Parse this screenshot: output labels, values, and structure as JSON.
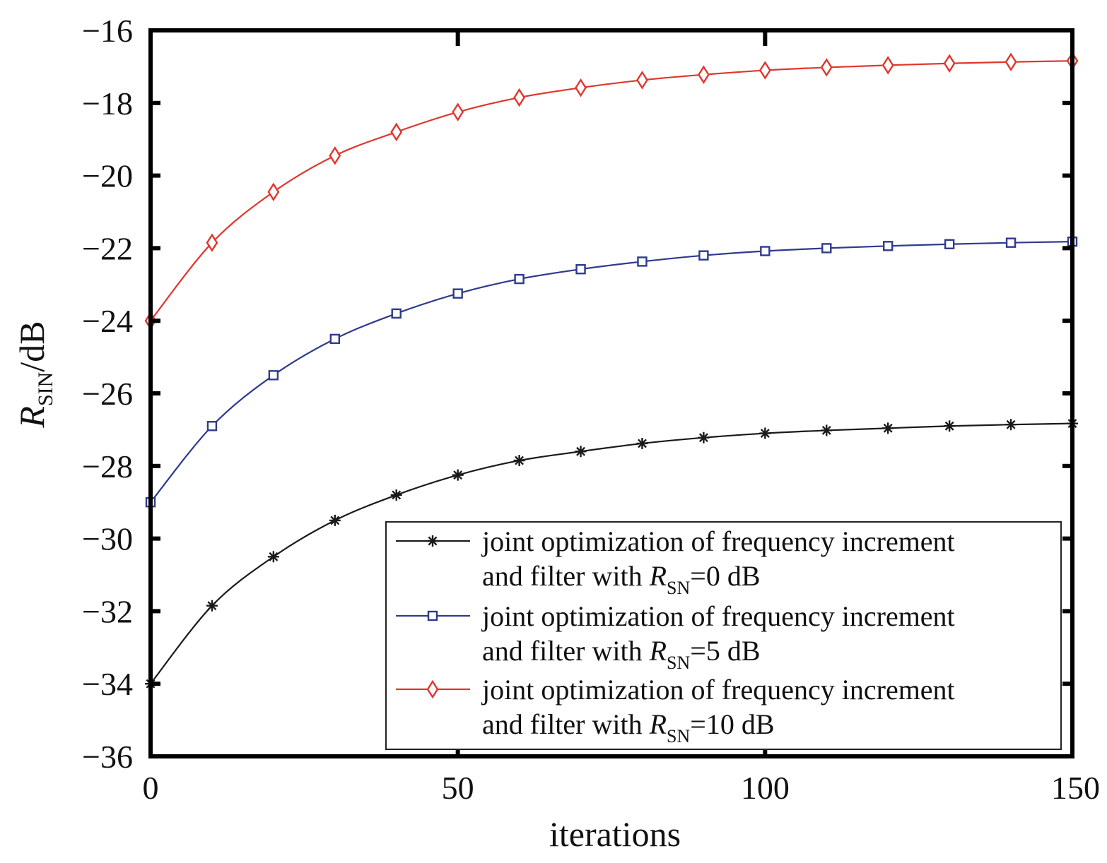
{
  "chart_data": {
    "type": "line",
    "xlabel": "iterations",
    "ylabel": {
      "main": "R",
      "sub": "SIN",
      "suffix": "/dB"
    },
    "xlim": [
      0,
      150
    ],
    "ylim": [
      -36,
      -16
    ],
    "xticks": [
      0,
      50,
      100,
      150
    ],
    "yticks": [
      -36,
      -34,
      -32,
      -30,
      -28,
      -26,
      -24,
      -22,
      -20,
      -18,
      -16
    ],
    "xtick_labels": [
      "0",
      "50",
      "100",
      "150"
    ],
    "ytick_labels": [
      "−36",
      "−34",
      "−32",
      "−30",
      "−28",
      "−26",
      "−24",
      "−22",
      "−20",
      "−18",
      "−16"
    ],
    "grid": false,
    "legend_position": "bottom-right",
    "series": [
      {
        "legend_line1": "joint optimization of frequency increment",
        "legend_line2": {
          "pre": "and filter with ",
          "main": "R",
          "sub": "SN",
          "post": "=0 dB"
        },
        "color": "#1a1a1a",
        "marker": "asterisk",
        "x": [
          0,
          10,
          20,
          30,
          40,
          50,
          60,
          70,
          80,
          90,
          100,
          110,
          120,
          130,
          140,
          150
        ],
        "y": [
          -34.0,
          -31.85,
          -30.5,
          -29.5,
          -28.8,
          -28.25,
          -27.85,
          -27.6,
          -27.38,
          -27.22,
          -27.1,
          -27.02,
          -26.96,
          -26.9,
          -26.86,
          -26.83
        ]
      },
      {
        "legend_line1": "joint optimization of frequency increment",
        "legend_line2": {
          "pre": "and filter with ",
          "main": "R",
          "sub": "SN",
          "post": "=5 dB"
        },
        "color": "#2e3a8c",
        "marker": "square",
        "x": [
          0,
          10,
          20,
          30,
          40,
          50,
          60,
          70,
          80,
          90,
          100,
          110,
          120,
          130,
          140,
          150
        ],
        "y": [
          -29.0,
          -26.9,
          -25.5,
          -24.5,
          -23.8,
          -23.25,
          -22.85,
          -22.58,
          -22.37,
          -22.2,
          -22.08,
          -22.0,
          -21.94,
          -21.89,
          -21.85,
          -21.82
        ]
      },
      {
        "legend_line1": "joint optimization of frequency increment",
        "legend_line2": {
          "pre": "and filter with ",
          "main": "R",
          "sub": "SN",
          "post": "=10 dB"
        },
        "color": "#e0362c",
        "marker": "diamond",
        "x": [
          0,
          10,
          20,
          30,
          40,
          50,
          60,
          70,
          80,
          90,
          100,
          110,
          120,
          130,
          140,
          150
        ],
        "y": [
          -24.0,
          -21.85,
          -20.45,
          -19.45,
          -18.8,
          -18.25,
          -17.85,
          -17.58,
          -17.37,
          -17.22,
          -17.1,
          -17.02,
          -16.96,
          -16.91,
          -16.87,
          -16.84
        ]
      }
    ]
  }
}
